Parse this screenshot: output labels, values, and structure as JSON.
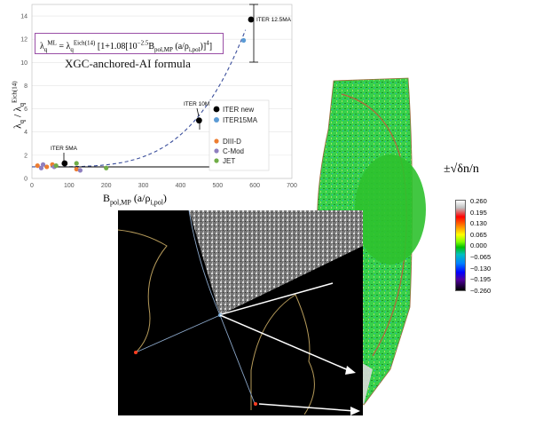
{
  "chart_data": {
    "type": "scatter",
    "ylabel_main": "λq / λqEich(14)",
    "xlabel_main": "Bpol,MP (a/ρi,pol)",
    "xlim": [
      0,
      700
    ],
    "ylim": [
      0,
      15
    ],
    "x_ticks": [
      "0",
      "100",
      "200",
      "300",
      "400",
      "500",
      "600",
      "700"
    ],
    "y_ticks": [
      "0",
      "2",
      "4",
      "6",
      "8",
      "10",
      "12",
      "14"
    ],
    "series": [
      {
        "name": "ITER new",
        "color": "#000000",
        "points": [
          [
            88,
            1.3
          ],
          [
            450,
            5.0
          ],
          [
            590,
            13.7
          ]
        ]
      },
      {
        "name": "ITER15MA",
        "color": "#5b9bd5",
        "points": [
          [
            570,
            11.9
          ]
        ]
      },
      {
        "name": "DIII-D",
        "color": "#ed7d31",
        "points": [
          [
            15,
            1.1
          ],
          [
            40,
            1.0
          ],
          [
            55,
            1.2
          ],
          [
            120,
            0.8
          ]
        ]
      },
      {
        "name": "C-Mod",
        "color": "#8f7fbf",
        "points": [
          [
            25,
            0.9
          ],
          [
            30,
            1.2
          ],
          [
            60,
            1.0
          ],
          [
            130,
            0.7
          ]
        ]
      },
      {
        "name": "JET",
        "color": "#70ad47",
        "points": [
          [
            65,
            1.1
          ],
          [
            120,
            1.3
          ],
          [
            200,
            0.9
          ]
        ]
      }
    ],
    "annotations": [
      "ITER 5MA",
      "ITER 10MA",
      "ITER 12.5MA"
    ]
  },
  "formula": {
    "text": "λqML = λqEich(14) [1+1.08[10−2.5Bpol,MP(a/ρi,pol)]4]",
    "lhs": "λ",
    "title": "XGC-anchored-AI formula"
  },
  "legend": {
    "items": [
      {
        "label": "ITER new",
        "color": "#000000"
      },
      {
        "label": "ITER15MA",
        "color": "#5b9bd5"
      },
      {
        "label": "DIII-D",
        "color": "#ed7d31"
      },
      {
        "label": "C-Mod",
        "color": "#8f7fbf"
      },
      {
        "label": "JET",
        "color": "#70ad47"
      }
    ]
  },
  "colorbar": {
    "title": "±√δn/n",
    "ticks": [
      "0.260",
      "0.195",
      "0.130",
      "0.065",
      "0.000",
      "−0.065",
      "−0.130",
      "−0.195",
      "−0.260"
    ]
  }
}
